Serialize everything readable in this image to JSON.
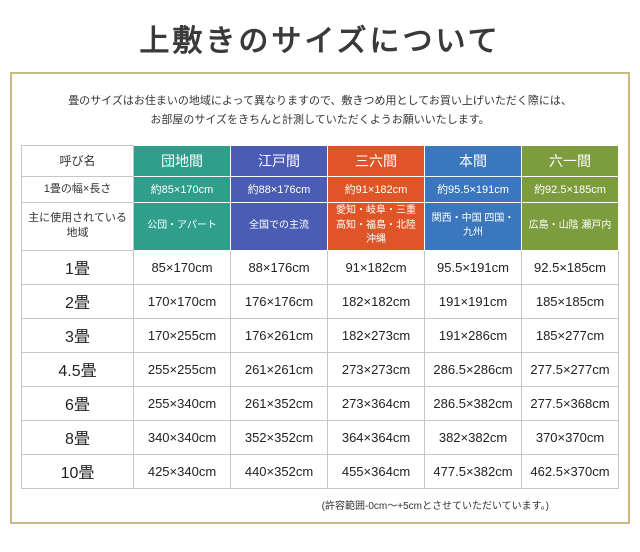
{
  "page": {
    "title": "上敷きのサイズについて",
    "intro_line1": "畳のサイズはお住まいの地域によって異なりますので、敷きつめ用としてお買い上げいただく際には、",
    "intro_line2": "お部屋のサイズをきちんと計測していただくようお願いいたします。",
    "footnote": "(許容範囲-0cm〜+5cmとさせていただいています。)"
  },
  "table": {
    "corner_label": "呼び名",
    "size_label": "1畳の幅×長さ",
    "region_label": "主に使用されている地域",
    "columns": [
      {
        "name": "団地間",
        "color": "#2f9f8b",
        "size": "約85×170cm",
        "region": "公団・アパート"
      },
      {
        "name": "江戸間",
        "color": "#4a5cb3",
        "size": "約88×176cm",
        "region": "全国での主流"
      },
      {
        "name": "三六間",
        "color": "#df5527",
        "size": "約91×182cm",
        "region": "愛知・岐阜・三重 高知・福島・北陸 沖縄"
      },
      {
        "name": "本間",
        "color": "#3b77bd",
        "size": "約95.5×191cm",
        "region": "関西・中国 四国・九州"
      },
      {
        "name": "六一間",
        "color": "#7d9c3d",
        "size": "約92.5×185cm",
        "region": "広島・山陰 瀬戸内"
      }
    ],
    "rows": [
      {
        "label": "1畳",
        "values": [
          "85×170cm",
          "88×176cm",
          "91×182cm",
          "95.5×191cm",
          "92.5×185cm"
        ]
      },
      {
        "label": "2畳",
        "values": [
          "170×170cm",
          "176×176cm",
          "182×182cm",
          "191×191cm",
          "185×185cm"
        ]
      },
      {
        "label": "3畳",
        "values": [
          "170×255cm",
          "176×261cm",
          "182×273cm",
          "191×286cm",
          "185×277cm"
        ]
      },
      {
        "label": "4.5畳",
        "values": [
          "255×255cm",
          "261×261cm",
          "273×273cm",
          "286.5×286cm",
          "277.5×277cm"
        ]
      },
      {
        "label": "6畳",
        "values": [
          "255×340cm",
          "261×352cm",
          "273×364cm",
          "286.5×382cm",
          "277.5×368cm"
        ]
      },
      {
        "label": "8畳",
        "values": [
          "340×340cm",
          "352×352cm",
          "364×364cm",
          "382×382cm",
          "370×370cm"
        ]
      },
      {
        "label": "10畳",
        "values": [
          "425×340cm",
          "440×352cm",
          "455×364cm",
          "477.5×382cm",
          "462.5×370cm"
        ]
      }
    ]
  }
}
